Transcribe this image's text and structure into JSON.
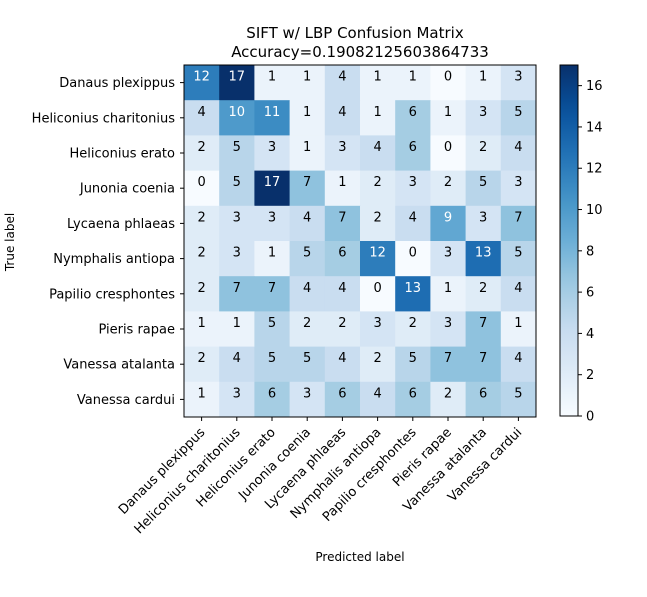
{
  "chart_data": {
    "type": "heatmap",
    "title": "SIFT w/ LBP Confusion Matrix",
    "subtitle": "Accuracy=0.19082125603864733",
    "xlabel": "Predicted label",
    "ylabel": "True label",
    "labels": [
      "Danaus plexippus",
      "Heliconius charitonius",
      "Heliconius erato",
      "Junonia coenia",
      "Lycaena phlaeas",
      "Nymphalis antiopa",
      "Papilio cresphontes",
      "Pieris rapae",
      "Vanessa atalanta",
      "Vanessa cardui"
    ],
    "matrix": [
      [
        12,
        17,
        1,
        1,
        4,
        1,
        1,
        0,
        1,
        3
      ],
      [
        4,
        10,
        11,
        1,
        4,
        1,
        6,
        1,
        3,
        5
      ],
      [
        2,
        5,
        3,
        1,
        3,
        4,
        6,
        0,
        2,
        4
      ],
      [
        0,
        5,
        17,
        7,
        1,
        2,
        3,
        2,
        5,
        3
      ],
      [
        2,
        3,
        3,
        4,
        7,
        2,
        4,
        9,
        3,
        7
      ],
      [
        2,
        3,
        1,
        5,
        6,
        12,
        0,
        3,
        13,
        5
      ],
      [
        2,
        7,
        7,
        4,
        4,
        0,
        13,
        1,
        2,
        4
      ],
      [
        1,
        1,
        5,
        2,
        2,
        3,
        2,
        3,
        7,
        1
      ],
      [
        2,
        4,
        5,
        5,
        4,
        2,
        5,
        7,
        7,
        4
      ],
      [
        1,
        3,
        6,
        3,
        6,
        4,
        6,
        2,
        6,
        5
      ]
    ],
    "colorbar": {
      "min": 0,
      "max": 17,
      "ticks": [
        0,
        2,
        4,
        6,
        8,
        10,
        12,
        14,
        16
      ]
    },
    "colormap": "Blues"
  }
}
